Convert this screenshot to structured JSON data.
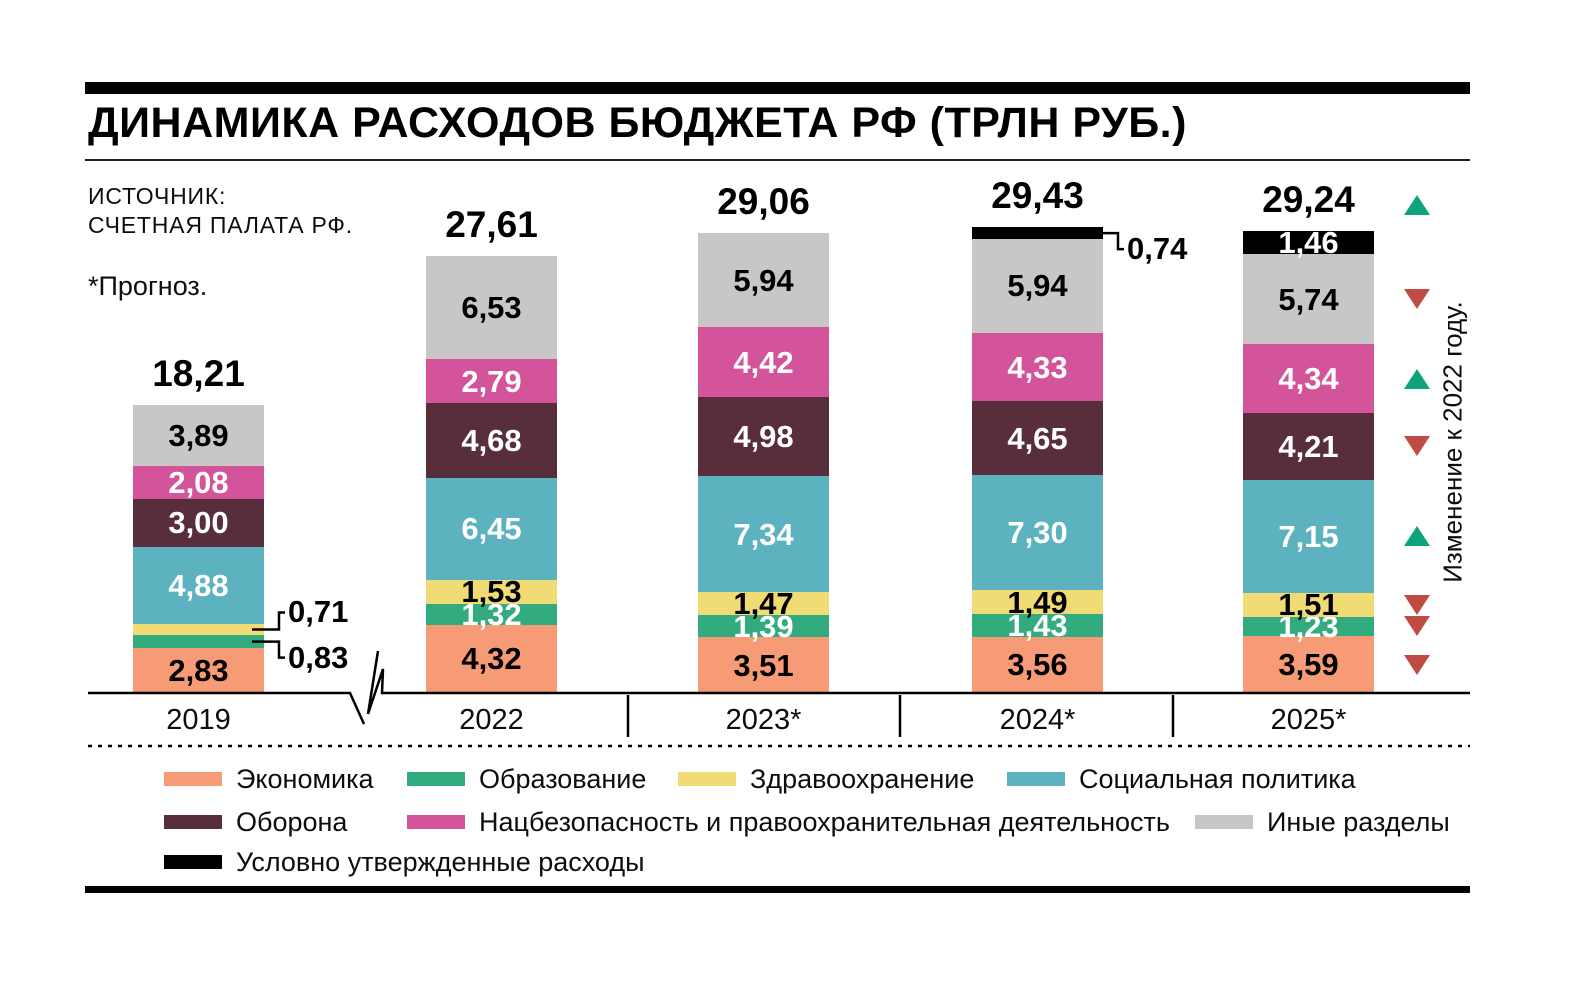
{
  "header": {
    "title": "ДИНАМИКА РАСХОДОВ БЮДЖЕТА РФ (ТРЛН РУБ.)",
    "source_line1": "ИСТОЧНИК:",
    "source_line2": "СЧЕТНАЯ ПАЛАТА РФ.",
    "footnote": "*Прогноз."
  },
  "colors": {
    "increase": "#0FA37C",
    "decrease": "#C04B43"
  },
  "chart_data": {
    "type": "bar",
    "stacked": true,
    "unit": "трлн руб.",
    "categories": [
      "2019",
      "2022",
      "2023*",
      "2024*",
      "2025*"
    ],
    "series": [
      {
        "key": "economy",
        "name": "Экономика",
        "color": "#F69B75",
        "values": [
          2.83,
          4.32,
          3.51,
          3.56,
          3.59
        ]
      },
      {
        "key": "education",
        "name": "Образование",
        "color": "#32AC7E",
        "values": [
          0.83,
          1.32,
          1.39,
          1.43,
          1.23
        ]
      },
      {
        "key": "health",
        "name": "Здравоохранение",
        "color": "#F1DB74",
        "values": [
          0.71,
          1.53,
          1.47,
          1.49,
          1.51
        ]
      },
      {
        "key": "social",
        "name": "Социальная политика",
        "color": "#5CB2BF",
        "values": [
          4.88,
          6.45,
          7.34,
          7.3,
          7.15
        ]
      },
      {
        "key": "defense",
        "name": "Оборона",
        "color": "#592E3C",
        "values": [
          3.0,
          4.68,
          4.98,
          4.65,
          4.21
        ]
      },
      {
        "key": "natsec",
        "name": "Нацбезопасность и правоохранительная деятельность",
        "color": "#D4549C",
        "values": [
          2.08,
          2.79,
          4.42,
          4.33,
          4.34
        ]
      },
      {
        "key": "other",
        "name": "Иные разделы",
        "color": "#C8C6C6",
        "values": [
          3.89,
          6.53,
          5.94,
          5.94,
          5.74
        ]
      },
      {
        "key": "conditional",
        "name": "Условно утвержденные расходы",
        "color": "#000000",
        "values": [
          null,
          null,
          null,
          0.74,
          1.46
        ]
      }
    ],
    "totals": [
      18.21,
      27.61,
      29.06,
      29.43,
      29.24
    ],
    "totals_display": [
      "18,21",
      "27,61",
      "29,06",
      "29,43",
      "29,24"
    ],
    "callouts": [
      {
        "bar": 0,
        "series": "health",
        "elbow": "up",
        "text": "0,71"
      },
      {
        "bar": 0,
        "series": "education",
        "elbow": "down",
        "text": "0,83"
      },
      {
        "bar": 3,
        "series": "conditional",
        "elbow": "down",
        "text": "0,74"
      }
    ],
    "grid": false,
    "legend_position": "bottom"
  },
  "change_vs_2022": {
    "label": "Изменение к 2022 году.",
    "total": "up",
    "by_series": {
      "economy": "down",
      "education": "down",
      "health": "down",
      "social": "up",
      "defense": "down",
      "natsec": "up",
      "other": "down"
    }
  },
  "legend": {
    "rows": [
      [
        0,
        1,
        2,
        3
      ],
      [
        4,
        5,
        6
      ],
      [
        7
      ]
    ]
  }
}
